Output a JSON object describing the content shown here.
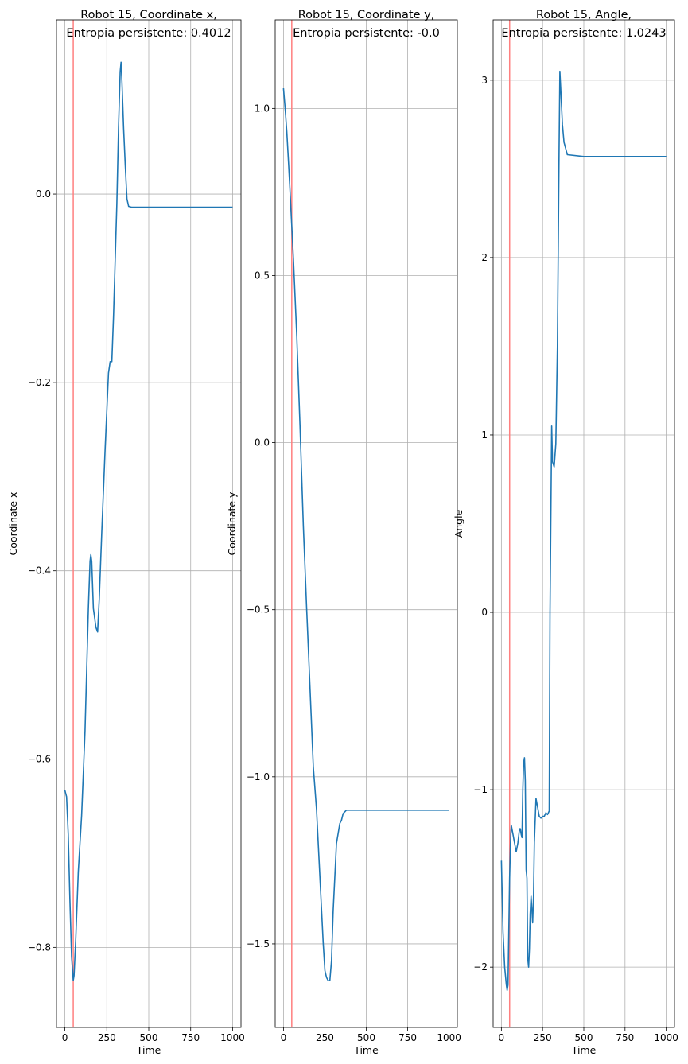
{
  "figure": {
    "line_color": "#1f77b4",
    "marker_line_color": "#ff7f7f",
    "grid_color": "#b0b0b0",
    "marker_x": 50
  },
  "chart_data": [
    {
      "type": "line",
      "title_line1": "Robot 15, Coordinate x,",
      "title_line2": "Entropia persistente: 0.4012",
      "xlabel": "Time",
      "ylabel": "Coordinate x",
      "xlim": [
        -50,
        1050
      ],
      "ylim": [
        -0.885,
        0.185
      ],
      "xticks": [
        0,
        250,
        500,
        750,
        1000
      ],
      "xtick_labels": [
        "0",
        "250",
        "500",
        "750",
        "1000"
      ],
      "yticks": [
        -0.8,
        -0.6,
        -0.4,
        -0.2,
        0.0
      ],
      "ytick_labels": [
        "−0.8",
        "−0.6",
        "−0.4",
        "−0.2",
        "0.0"
      ],
      "grid": true,
      "series": [
        {
          "x": [
            0,
            10,
            20,
            30,
            40,
            50,
            55,
            65,
            80,
            100,
            120,
            140,
            150,
            155,
            160,
            170,
            185,
            195,
            205,
            220,
            240,
            260,
            270,
            280,
            290,
            300,
            310,
            320,
            330,
            335,
            340,
            350,
            360,
            370,
            380,
            400,
            500,
            750,
            1000
          ],
          "y": [
            -0.633,
            -0.64,
            -0.68,
            -0.75,
            -0.81,
            -0.835,
            -0.83,
            -0.79,
            -0.72,
            -0.66,
            -0.57,
            -0.44,
            -0.39,
            -0.383,
            -0.39,
            -0.44,
            -0.46,
            -0.465,
            -0.43,
            -0.36,
            -0.27,
            -0.19,
            -0.178,
            -0.178,
            -0.13,
            -0.07,
            -0.01,
            0.07,
            0.13,
            0.14,
            0.12,
            0.07,
            0.03,
            -0.005,
            -0.013,
            -0.014,
            -0.014,
            -0.014,
            -0.014
          ]
        }
      ]
    },
    {
      "type": "line",
      "title_line1": "Robot 15, Coordinate y,",
      "title_line2": "Entropia persistente: -0.0",
      "xlabel": "Time",
      "ylabel": "Coordinate y",
      "xlim": [
        -50,
        1050
      ],
      "ylim": [
        -1.75,
        1.265
      ],
      "xticks": [
        0,
        250,
        500,
        750,
        1000
      ],
      "xtick_labels": [
        "0",
        "250",
        "500",
        "750",
        "1000"
      ],
      "yticks": [
        -1.5,
        -1.0,
        -0.5,
        0.0,
        0.5,
        1.0
      ],
      "ytick_labels": [
        "−1.5",
        "−1.0",
        "−0.5",
        "0.0",
        "0.5",
        "1.0"
      ],
      "grid": true,
      "series": [
        {
          "x": [
            0,
            10,
            20,
            30,
            40,
            50,
            60,
            80,
            100,
            120,
            140,
            160,
            180,
            200,
            220,
            240,
            250,
            260,
            270,
            280,
            290,
            300,
            320,
            340,
            350,
            360,
            380,
            400,
            500,
            750,
            1000
          ],
          "y": [
            1.06,
            1.0,
            0.93,
            0.84,
            0.75,
            0.65,
            0.55,
            0.32,
            0.05,
            -0.25,
            -0.5,
            -0.73,
            -0.97,
            -1.1,
            -1.3,
            -1.5,
            -1.58,
            -1.6,
            -1.61,
            -1.61,
            -1.55,
            -1.4,
            -1.2,
            -1.14,
            -1.13,
            -1.11,
            -1.1,
            -1.1,
            -1.1,
            -1.1,
            -1.1
          ]
        }
      ]
    },
    {
      "type": "line",
      "title_line1": "Robot 15, Angle,",
      "title_line2": "Entropia persistente: 1.0243",
      "xlabel": "Time",
      "ylabel": "Angle",
      "xlim": [
        -50,
        1050
      ],
      "ylim": [
        -2.34,
        3.34
      ],
      "xticks": [
        0,
        250,
        500,
        750,
        1000
      ],
      "xtick_labels": [
        "0",
        "250",
        "500",
        "750",
        "1000"
      ],
      "yticks": [
        -2,
        -1,
        0,
        1,
        2,
        3
      ],
      "ytick_labels": [
        "−2",
        "−1",
        "0",
        "1",
        "2",
        "3"
      ],
      "grid": true,
      "series": [
        {
          "x": [
            0,
            5,
            10,
            20,
            30,
            35,
            40,
            50,
            55,
            60,
            70,
            80,
            90,
            100,
            110,
            115,
            120,
            125,
            130,
            135,
            140,
            145,
            150,
            155,
            160,
            165,
            170,
            175,
            180,
            190,
            195,
            200,
            210,
            220,
            230,
            240,
            250,
            260,
            270,
            280,
            290,
            295,
            300,
            305,
            310,
            320,
            330,
            340,
            350,
            355,
            360,
            370,
            380,
            400,
            500,
            750,
            1000
          ],
          "y": [
            -1.4,
            -1.6,
            -1.8,
            -2.0,
            -2.1,
            -2.13,
            -2.1,
            -1.5,
            -1.3,
            -1.2,
            -1.25,
            -1.3,
            -1.35,
            -1.3,
            -1.22,
            -1.22,
            -1.25,
            -1.27,
            -1.0,
            -0.85,
            -0.82,
            -0.95,
            -1.45,
            -1.5,
            -1.95,
            -2.0,
            -1.9,
            -1.7,
            -1.6,
            -1.75,
            -1.6,
            -1.3,
            -1.05,
            -1.1,
            -1.15,
            -1.16,
            -1.15,
            -1.15,
            -1.13,
            -1.14,
            -1.12,
            0.0,
            0.5,
            1.05,
            0.85,
            0.82,
            0.95,
            1.5,
            2.6,
            3.05,
            2.95,
            2.75,
            2.65,
            2.58,
            2.57,
            2.57,
            2.57
          ]
        }
      ]
    }
  ]
}
